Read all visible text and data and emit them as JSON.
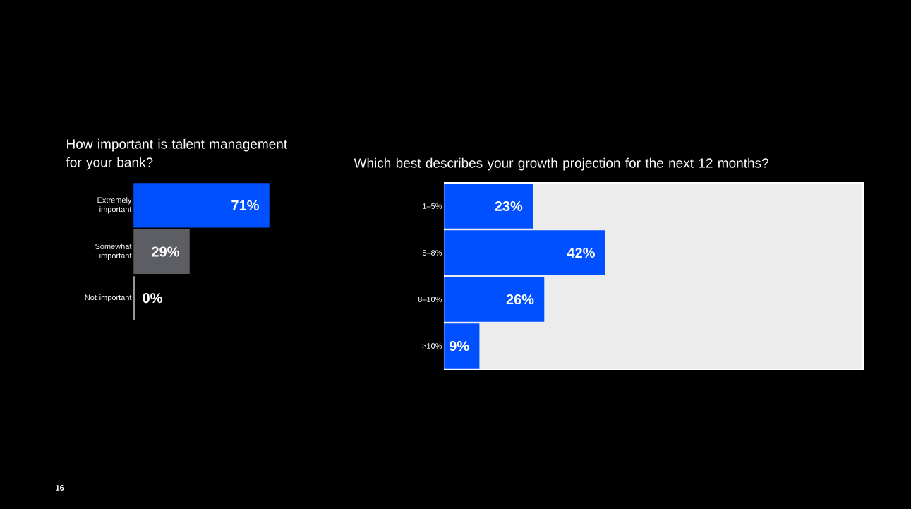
{
  "chart_data": [
    {
      "type": "bar",
      "orientation": "horizontal",
      "title": "How important is talent management for your bank?",
      "categories": [
        "Extremely important",
        "Somewhat important",
        "Not important"
      ],
      "values": [
        71,
        29,
        0
      ],
      "colors": [
        "#0050ff",
        "#5c5e63",
        "#c8c8c8"
      ],
      "value_labels": [
        "71%",
        "29%",
        "0%"
      ],
      "annotations": [
        "16"
      ]
    },
    {
      "type": "bar",
      "orientation": "horizontal",
      "title": "Which best describes your growth projection for the next 12 months?",
      "categories": [
        "1–5%",
        "5–8%",
        "8–10%",
        ">10%"
      ],
      "values": [
        23,
        42,
        26,
        9
      ],
      "color": "#0050ff",
      "value_labels": [
        "23%",
        "42%",
        "26%",
        "9%"
      ]
    }
  ]
}
